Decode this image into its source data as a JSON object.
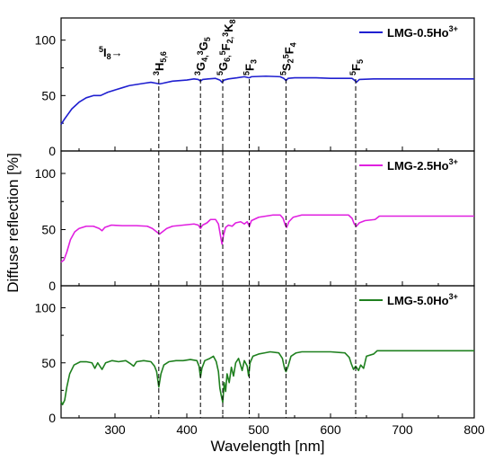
{
  "chart_data": {
    "type": "line",
    "xlabel": "Wavelength [nm]",
    "ylabel": "Diffuse reflection [%]",
    "xlim": [
      225,
      800
    ],
    "x_ticks": [
      "300",
      "400",
      "500",
      "600",
      "700",
      "800"
    ],
    "y_ticks": [
      "0",
      "50",
      "100"
    ],
    "panels": [
      {
        "series_name": "LMG-0.5Ho",
        "series_sup": "3+",
        "color": "#1f1fd0",
        "ylim": [
          0,
          120
        ],
        "points": [
          [
            225,
            24
          ],
          [
            230,
            29
          ],
          [
            240,
            38
          ],
          [
            250,
            44
          ],
          [
            260,
            48
          ],
          [
            270,
            50
          ],
          [
            280,
            50
          ],
          [
            290,
            53
          ],
          [
            300,
            55
          ],
          [
            310,
            57
          ],
          [
            320,
            59
          ],
          [
            330,
            60
          ],
          [
            340,
            61
          ],
          [
            350,
            62
          ],
          [
            358,
            61
          ],
          [
            362,
            60.5
          ],
          [
            366,
            61
          ],
          [
            380,
            63
          ],
          [
            400,
            64
          ],
          [
            410,
            65
          ],
          [
            416,
            64.5
          ],
          [
            419,
            63
          ],
          [
            422,
            64.5
          ],
          [
            430,
            65
          ],
          [
            440,
            65.5
          ],
          [
            446,
            64
          ],
          [
            449,
            62
          ],
          [
            452,
            64
          ],
          [
            458,
            65
          ],
          [
            470,
            66
          ],
          [
            480,
            67
          ],
          [
            487,
            66
          ],
          [
            490,
            67
          ],
          [
            510,
            67.5
          ],
          [
            530,
            67
          ],
          [
            535,
            65.5
          ],
          [
            538,
            63.5
          ],
          [
            541,
            65.5
          ],
          [
            550,
            66
          ],
          [
            580,
            66
          ],
          [
            600,
            65.5
          ],
          [
            630,
            65.5
          ],
          [
            634,
            63.5
          ],
          [
            636,
            62
          ],
          [
            640,
            64.5
          ],
          [
            660,
            65
          ],
          [
            700,
            65
          ],
          [
            750,
            65
          ],
          [
            800,
            65
          ]
        ]
      },
      {
        "series_name": "LMG-2.5Ho",
        "series_sup": "3+",
        "color": "#e020e0",
        "ylim": [
          0,
          120
        ],
        "points": [
          [
            225,
            21
          ],
          [
            229,
            23
          ],
          [
            233,
            30
          ],
          [
            238,
            41
          ],
          [
            244,
            48
          ],
          [
            250,
            51
          ],
          [
            260,
            53
          ],
          [
            270,
            53
          ],
          [
            278,
            51
          ],
          [
            282,
            49
          ],
          [
            286,
            52
          ],
          [
            295,
            54
          ],
          [
            310,
            53.5
          ],
          [
            330,
            53.5
          ],
          [
            345,
            53
          ],
          [
            352,
            51
          ],
          [
            358,
            48
          ],
          [
            362,
            46
          ],
          [
            366,
            48
          ],
          [
            372,
            51
          ],
          [
            380,
            53
          ],
          [
            395,
            54
          ],
          [
            410,
            55
          ],
          [
            416,
            54
          ],
          [
            419,
            51
          ],
          [
            422,
            54
          ],
          [
            428,
            56
          ],
          [
            433,
            59
          ],
          [
            440,
            59
          ],
          [
            444,
            55
          ],
          [
            447,
            44
          ],
          [
            449,
            37
          ],
          [
            451,
            45
          ],
          [
            454,
            52
          ],
          [
            458,
            54
          ],
          [
            463,
            53
          ],
          [
            468,
            56
          ],
          [
            475,
            57
          ],
          [
            480,
            55
          ],
          [
            484,
            57
          ],
          [
            487,
            53
          ],
          [
            490,
            58
          ],
          [
            500,
            61
          ],
          [
            510,
            62
          ],
          [
            520,
            63
          ],
          [
            530,
            63
          ],
          [
            534,
            60
          ],
          [
            537,
            54
          ],
          [
            539,
            52
          ],
          [
            542,
            57
          ],
          [
            548,
            61
          ],
          [
            560,
            63
          ],
          [
            600,
            63
          ],
          [
            625,
            63
          ],
          [
            630,
            60
          ],
          [
            633,
            55
          ],
          [
            636,
            53
          ],
          [
            640,
            56
          ],
          [
            648,
            58
          ],
          [
            662,
            59
          ],
          [
            668,
            62
          ],
          [
            680,
            62
          ],
          [
            720,
            62
          ],
          [
            760,
            62
          ],
          [
            800,
            62
          ]
        ]
      },
      {
        "series_name": "LMG-5.0Ho",
        "series_sup": "3+",
        "color": "#1f801f",
        "ylim": [
          0,
          120
        ],
        "points": [
          [
            225,
            15
          ],
          [
            227,
            12
          ],
          [
            230,
            16
          ],
          [
            233,
            28
          ],
          [
            237,
            40
          ],
          [
            243,
            48
          ],
          [
            252,
            51
          ],
          [
            260,
            51
          ],
          [
            268,
            50
          ],
          [
            272,
            45
          ],
          [
            276,
            50
          ],
          [
            282,
            44
          ],
          [
            287,
            50
          ],
          [
            296,
            52
          ],
          [
            305,
            51
          ],
          [
            315,
            52
          ],
          [
            322,
            49
          ],
          [
            326,
            47
          ],
          [
            330,
            51
          ],
          [
            340,
            52
          ],
          [
            350,
            51
          ],
          [
            355,
            47
          ],
          [
            358,
            42
          ],
          [
            361,
            28
          ],
          [
            364,
            40
          ],
          [
            368,
            48
          ],
          [
            375,
            51
          ],
          [
            385,
            52
          ],
          [
            395,
            52
          ],
          [
            405,
            53
          ],
          [
            414,
            52
          ],
          [
            417,
            47
          ],
          [
            419,
            37
          ],
          [
            421,
            45
          ],
          [
            425,
            52
          ],
          [
            432,
            54
          ],
          [
            437,
            56
          ],
          [
            441,
            51
          ],
          [
            444,
            42
          ],
          [
            446,
            27
          ],
          [
            448,
            20
          ],
          [
            450,
            14
          ],
          [
            452,
            32
          ],
          [
            454,
            24
          ],
          [
            456,
            40
          ],
          [
            459,
            32
          ],
          [
            462,
            46
          ],
          [
            465,
            38
          ],
          [
            468,
            50
          ],
          [
            472,
            54
          ],
          [
            477,
            43
          ],
          [
            480,
            52
          ],
          [
            484,
            47
          ],
          [
            486,
            38
          ],
          [
            488,
            50
          ],
          [
            492,
            56
          ],
          [
            500,
            58
          ],
          [
            508,
            59
          ],
          [
            516,
            60
          ],
          [
            528,
            59
          ],
          [
            533,
            54
          ],
          [
            536,
            45
          ],
          [
            538,
            42
          ],
          [
            541,
            47
          ],
          [
            545,
            56
          ],
          [
            552,
            59
          ],
          [
            560,
            60
          ],
          [
            575,
            60
          ],
          [
            600,
            60
          ],
          [
            620,
            59
          ],
          [
            626,
            55
          ],
          [
            629,
            49
          ],
          [
            632,
            44
          ],
          [
            635,
            47
          ],
          [
            639,
            43
          ],
          [
            642,
            48
          ],
          [
            646,
            45
          ],
          [
            650,
            56
          ],
          [
            660,
            58
          ],
          [
            665,
            61
          ],
          [
            700,
            61
          ],
          [
            760,
            61
          ],
          [
            800,
            61
          ]
        ]
      }
    ],
    "transitions": [
      {
        "x": 361,
        "label": "H",
        "pre": "3",
        "sub": "5,6"
      },
      {
        "x": 419,
        "label": "G",
        "pre": "3",
        "sub": "4,",
        "label2": "G",
        "pre2": "3",
        "sub2": "5"
      },
      {
        "x": 450,
        "label": "G",
        "pre": "5",
        "sub": "6,",
        "label2": "F",
        "pre2": "5",
        "sub2": "2,",
        "label3": "K",
        "pre3": "3",
        "sub3": "8"
      },
      {
        "x": 487,
        "label": "F",
        "pre": "5",
        "sub": "3"
      },
      {
        "x": 538,
        "label": "S",
        "pre": "5",
        "sub": "2",
        "label2": "F",
        "pre2": "5",
        "sub2": "4"
      },
      {
        "x": 635,
        "label": "F",
        "pre": "5",
        "sub": "5"
      }
    ],
    "ground_state": {
      "label": "I",
      "pre": "5",
      "sub": "8",
      "arrow": "→"
    }
  }
}
